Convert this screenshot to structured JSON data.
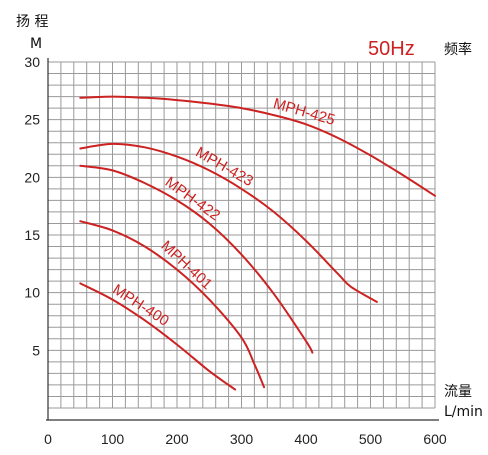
{
  "chart_data": {
    "type": "line",
    "y_title": "扬 程",
    "y_unit": "M",
    "x_title": "流量",
    "x_unit": "L/min",
    "frequency": "50Hz",
    "frequency_label": "频率",
    "xlim": [
      0,
      600
    ],
    "ylim": [
      0,
      30
    ],
    "x_ticks": [
      "0",
      "100",
      "200",
      "300",
      "400",
      "500",
      "600"
    ],
    "y_ticks": [
      "5",
      "10",
      "15",
      "20",
      "25",
      "30"
    ],
    "grid": true,
    "series": [
      {
        "name": "MPH-425",
        "color": "#cc2222",
        "x": [
          50,
          100,
          150,
          200,
          250,
          300,
          350,
          400,
          450,
          500,
          550,
          600
        ],
        "y": [
          26.9,
          27.0,
          26.9,
          26.7,
          26.4,
          26.0,
          25.4,
          24.6,
          23.4,
          21.9,
          20.2,
          18.4
        ]
      },
      {
        "name": "MPH-423",
        "color": "#cc2222",
        "x": [
          50,
          100,
          150,
          200,
          250,
          300,
          350,
          400,
          450,
          470,
          510
        ],
        "y": [
          22.5,
          22.9,
          22.6,
          21.8,
          20.6,
          19.0,
          17.0,
          14.5,
          11.6,
          10.5,
          9.2
        ]
      },
      {
        "name": "MPH-422",
        "color": "#cc2222",
        "x": [
          50,
          100,
          150,
          200,
          250,
          300,
          350,
          400,
          410
        ],
        "y": [
          21.0,
          20.6,
          19.5,
          18.0,
          16.0,
          13.3,
          9.9,
          5.8,
          4.8
        ]
      },
      {
        "name": "MPH-401",
        "color": "#cc2222",
        "x": [
          50,
          100,
          150,
          200,
          250,
          300,
          320,
          335
        ],
        "y": [
          16.2,
          15.4,
          14.0,
          12.0,
          9.4,
          6.1,
          3.8,
          1.8
        ]
      },
      {
        "name": "MPH-400",
        "color": "#cc2222",
        "x": [
          50,
          100,
          150,
          200,
          250,
          290
        ],
        "y": [
          10.8,
          9.4,
          7.6,
          5.5,
          3.2,
          1.6
        ]
      }
    ]
  }
}
